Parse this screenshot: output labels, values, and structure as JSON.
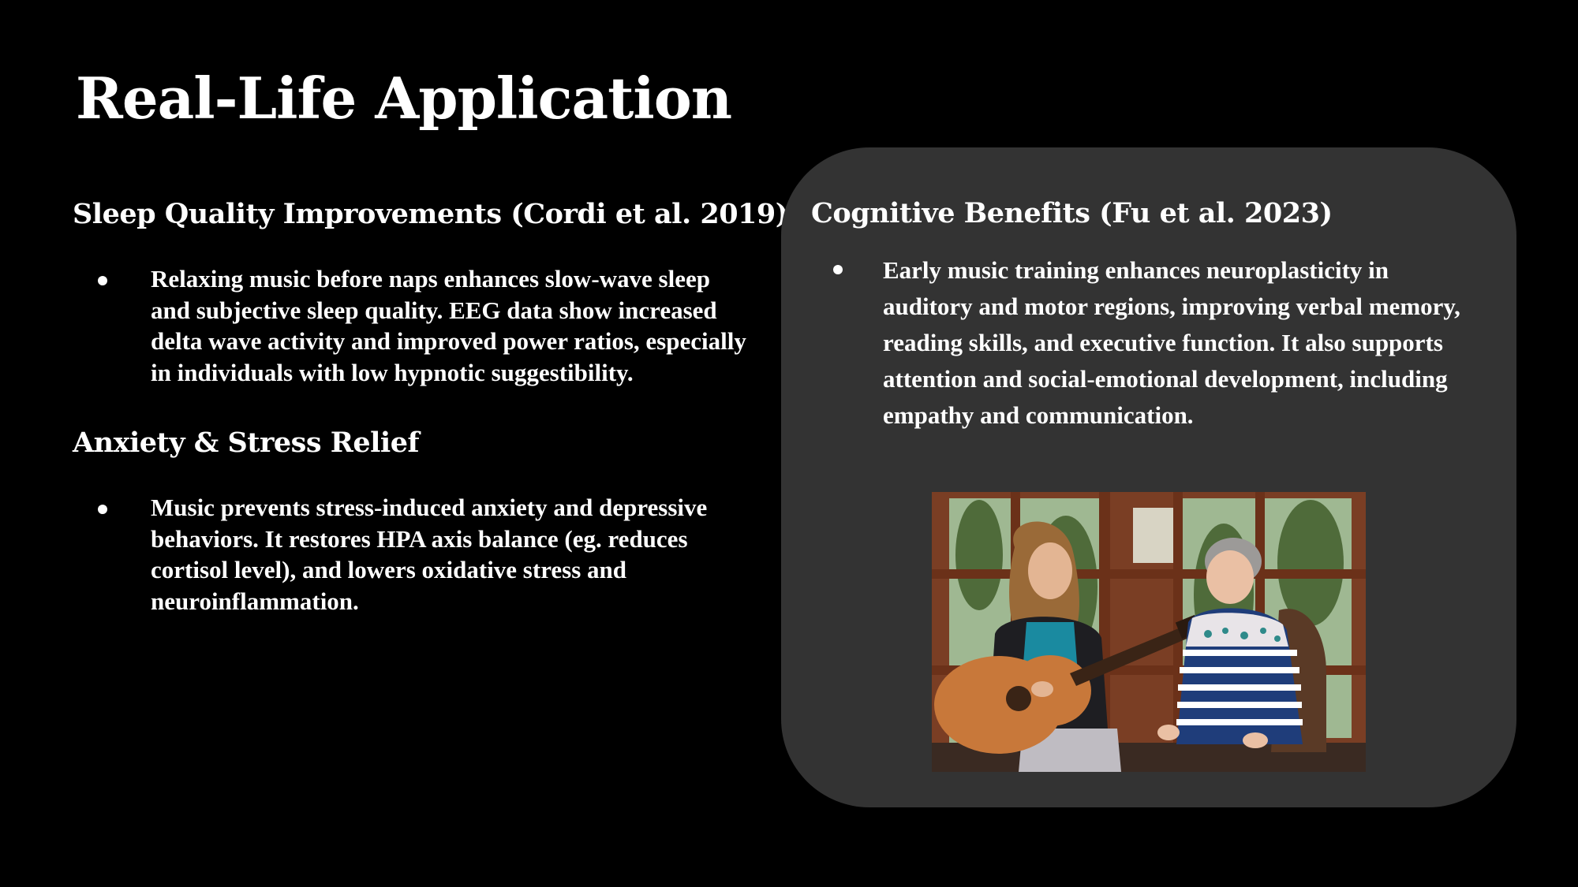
{
  "slide": {
    "title": "Real-Life Application"
  },
  "left": {
    "sleep": {
      "heading": "Sleep Quality Improvements (Cordi et al. 2019)",
      "bullet": "Relaxing music before naps enhances slow-wave sleep and subjective sleep quality. EEG data show increased delta wave activity and improved power ratios, especially in individuals with low hypnotic suggestibility."
    },
    "anxiety": {
      "heading": "Anxiety & Stress Relief",
      "bullet": "Music prevents stress-induced anxiety and depressive behaviors. It restores HPA axis balance (eg. reduces cortisol level), and lowers oxidative stress and neuroinflammation."
    }
  },
  "card": {
    "heading": "Cognitive Benefits (Fu et al. 2023)",
    "bullet": "Early music training enhances neuroplasticity in auditory and motor regions, improving verbal memory, reading skills, and executive function. It also supports attention and social-emotional development, including empathy and communication.",
    "background": "#333333"
  },
  "photo": {
    "icon": "photo-guitar-duo"
  }
}
